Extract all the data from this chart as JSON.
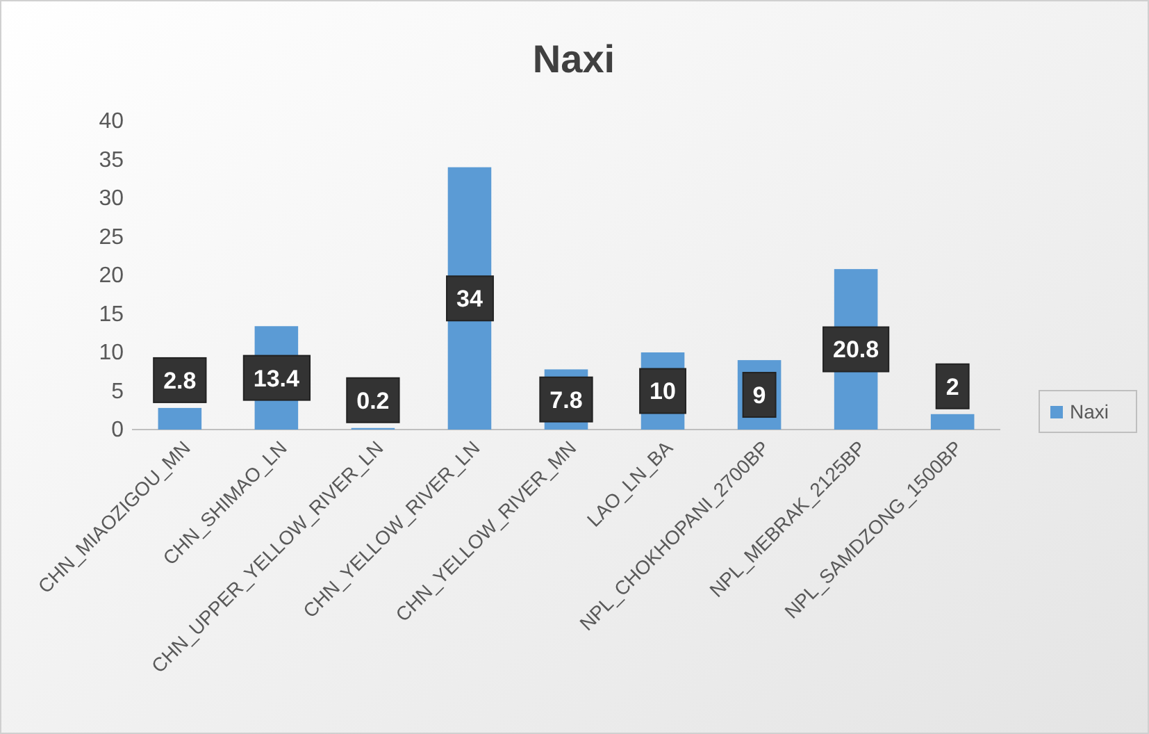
{
  "chart_data": {
    "type": "bar",
    "title": "Naxi",
    "categories": [
      "CHN_MIAOZIGOU_MN",
      "CHN_SHIMAO_LN",
      "CHN_UPPER_YELLOW_RIVER_LN",
      "CHN_YELLOW_RIVER_LN",
      "CHN_YELLOW_RIVER_MN",
      "LAO_LN_BA",
      "NPL_CHOKHOPANI_2700BP",
      "NPL_MEBRAK_2125BP",
      "NPL_SAMDZONG_1500BP"
    ],
    "series": [
      {
        "name": "Naxi",
        "color": "#5b9bd5",
        "values": [
          2.8,
          13.4,
          0.2,
          34,
          7.8,
          10,
          9,
          20.8,
          2
        ]
      }
    ],
    "ylim": [
      0,
      40
    ],
    "yticks": [
      0,
      5,
      10,
      15,
      20,
      25,
      30,
      35,
      40
    ],
    "grid": false,
    "legend": "right",
    "data_labels": true
  }
}
